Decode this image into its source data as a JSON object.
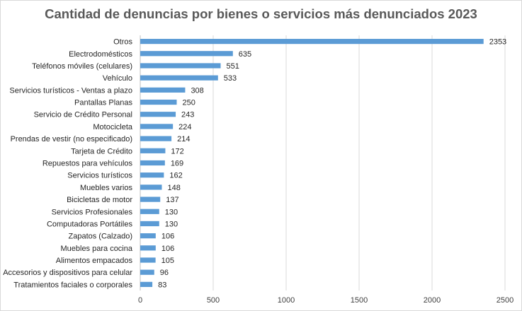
{
  "chart_data": {
    "type": "bar",
    "orientation": "horizontal",
    "title": "Cantidad de denuncias por bienes o servicios más denunciados 2023",
    "categories": [
      "Otros",
      "Electrodomésticos",
      "Teléfonos móviles (celulares)",
      "Vehículo",
      "Servicios turísticos - Ventas a plazo",
      "Pantallas Planas",
      "Servicio de Crédito Personal",
      "Motocicleta",
      "Prendas de vestir (no especificado)",
      "Tarjeta de Crédito",
      "Repuestos para vehículos",
      "Servicios turísticos",
      "Muebles varios",
      "Bicicletas de motor",
      "Servicios Profesionales",
      "Computadoras Portátiles",
      "Zapatos (Calzado)",
      "Muebles para cocina",
      "Alimentos empacados",
      "Accesorios y dispositivos para celular",
      "Tratamientos faciales o corporales"
    ],
    "values": [
      2353,
      635,
      551,
      533,
      308,
      250,
      243,
      224,
      214,
      172,
      169,
      162,
      148,
      137,
      130,
      130,
      106,
      106,
      105,
      96,
      83
    ],
    "xlim": [
      0,
      2500
    ],
    "x_ticks": [
      "0",
      "500",
      "1000",
      "1500",
      "2000",
      "2500"
    ],
    "grid": "vertical",
    "legend": "none",
    "bar_color": "#5b9bd5",
    "grid_color": "#d9d9d9",
    "title_color": "#595959"
  }
}
